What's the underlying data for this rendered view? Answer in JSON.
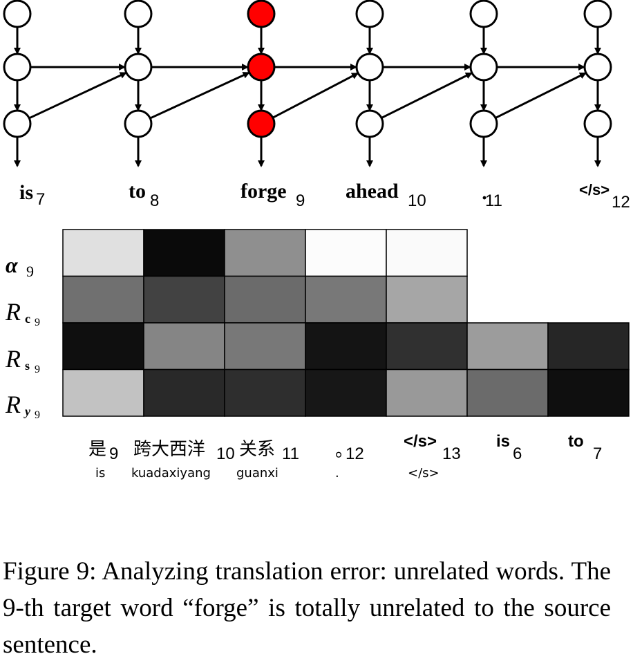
{
  "target_words": [
    {
      "word": "is",
      "index": "7"
    },
    {
      "word": "to",
      "index": "8"
    },
    {
      "word": "forge",
      "index": "9"
    },
    {
      "word": "ahead",
      "index": "10"
    },
    {
      "word": "·",
      "index": "11"
    },
    {
      "word": "</s>",
      "index": "12"
    }
  ],
  "highlighted_column": 2,
  "highlight_color": "#ff0000",
  "rows": [
    {
      "name": "α",
      "sub": "9"
    },
    {
      "name": "R",
      "sub": "c",
      "sub2": "9"
    },
    {
      "name": "R",
      "sub": "s",
      "sub2": "9"
    },
    {
      "name": "R",
      "sub": "y",
      "sub2": "9"
    }
  ],
  "heatmap": [
    [
      0.88,
      0.04,
      0.56,
      0.99,
      0.98
    ],
    [
      0.44,
      0.26,
      0.42,
      0.47,
      0.65
    ],
    [
      0.06,
      0.52,
      0.47,
      0.08,
      0.19,
      0.61,
      0.15
    ],
    [
      0.76,
      0.16,
      0.18,
      0.09,
      0.6,
      0.42,
      0.06
    ]
  ],
  "source_words": [
    {
      "word": "是",
      "index": "9",
      "pinyin": "is"
    },
    {
      "word": "跨大西洋",
      "index": "10",
      "pinyin": "kuadaxiyang"
    },
    {
      "word": "关系",
      "index": "11",
      "pinyin": "guanxi"
    },
    {
      "word": "。",
      "index": "12",
      "pinyin": "."
    },
    {
      "word": "</s>",
      "index": "13",
      "pinyin": "</s>"
    },
    {
      "word": "is",
      "index": "6",
      "pinyin": ""
    },
    {
      "word": "to",
      "index": "7",
      "pinyin": ""
    }
  ],
  "caption": "Figure 9: Analyzing translation error: unrelated words. The 9-th target word “forge” is totally unrelated to the source sentence."
}
